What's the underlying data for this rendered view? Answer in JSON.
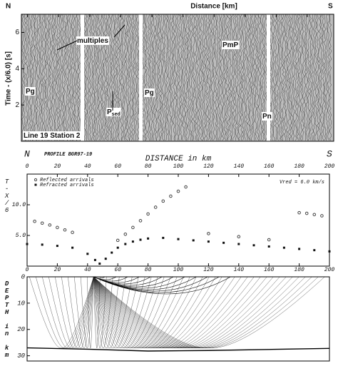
{
  "chart_data": [
    {
      "type": "seismic-section",
      "title": "Distance [km]",
      "ylabel": "Time - (x/6.0) [s]",
      "left_label": "N",
      "right_label": "S",
      "xlim": [
        -44,
        157
      ],
      "xticks": [
        -40,
        -20,
        0,
        20,
        40,
        60,
        80,
        100,
        120,
        140
      ],
      "ylim": [
        0,
        7
      ],
      "yticks": [
        2,
        4,
        6
      ],
      "annotations": [
        {
          "text": "multiples"
        },
        {
          "text": "PmP"
        },
        {
          "text": "Pg"
        },
        {
          "text": "Pg"
        },
        {
          "text": "P",
          "subscript": "sed"
        },
        {
          "text": "Pn"
        },
        {
          "text": "Line 19  Station 2"
        }
      ]
    },
    {
      "type": "scatter",
      "title": "PROFILE BGR97-19",
      "xlabel": "DISTANCE  in  km",
      "ylabel": "T-X/6",
      "left_label": "N",
      "right_label": "S",
      "note": "Vred =  6.0 km/s",
      "xlim": [
        0,
        200
      ],
      "xticks": [
        0,
        20,
        40,
        60,
        80,
        100,
        120,
        140,
        160,
        180,
        200
      ],
      "ylim": [
        0,
        15
      ],
      "yticks": [
        {
          "value": 5,
          "label": "5.0"
        },
        {
          "value": 10,
          "label": "10.0"
        }
      ],
      "series": [
        {
          "name": "Reflected arrivals",
          "color": "#444444",
          "x": [
            5,
            10,
            15,
            20,
            25,
            30,
            60,
            65,
            70,
            75,
            80,
            85,
            90,
            95,
            100,
            105,
            120,
            140,
            160,
            180,
            185,
            190,
            195
          ],
          "values": [
            7.3,
            7.0,
            6.7,
            6.3,
            5.9,
            5.5,
            4.2,
            5.2,
            6.3,
            7.4,
            8.5,
            9.6,
            10.6,
            11.4,
            12.2,
            12.9,
            5.3,
            4.8,
            4.3,
            8.7,
            8.6,
            8.4,
            8.2
          ]
        },
        {
          "name": "Refracted arrivals",
          "color": "#111111",
          "x": [
            0,
            10,
            20,
            30,
            40,
            45,
            48,
            52,
            56,
            60,
            65,
            70,
            75,
            80,
            90,
            100,
            110,
            120,
            130,
            140,
            150,
            160,
            170,
            180,
            190,
            200
          ],
          "values": [
            3.6,
            3.5,
            3.3,
            3.0,
            2.0,
            1.0,
            0.4,
            1.2,
            2.2,
            3.0,
            3.6,
            4.0,
            4.3,
            4.5,
            4.6,
            4.4,
            4.2,
            4.0,
            3.8,
            3.6,
            3.4,
            3.2,
            3.0,
            2.8,
            2.6,
            2.4
          ]
        }
      ]
    },
    {
      "type": "ray-diagram",
      "ylabel": "DEPTH  in  km",
      "xlim": [
        0,
        200
      ],
      "ylim": [
        0,
        32
      ],
      "yticks": [
        0,
        10,
        20,
        30
      ],
      "layers": [
        {
          "x": [
            0,
            40,
            80,
            120,
            160,
            200
          ],
          "values": [
            27,
            27.5,
            28.2,
            28,
            27.6,
            27.2
          ]
        }
      ]
    }
  ]
}
